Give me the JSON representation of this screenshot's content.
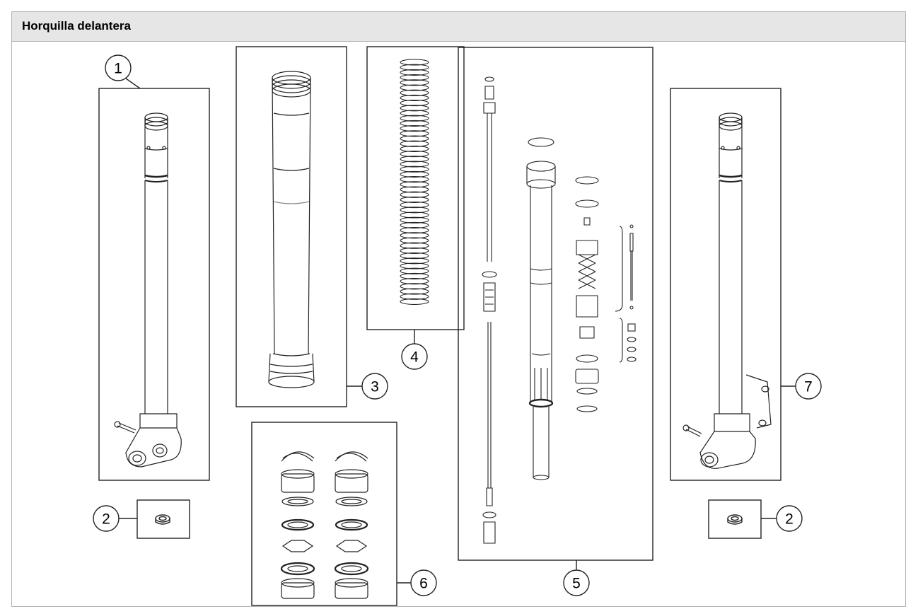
{
  "header": {
    "title": "Horquilla delantera"
  },
  "callouts": [
    "1",
    "2",
    "3",
    "4",
    "5",
    "6",
    "7",
    "2"
  ]
}
